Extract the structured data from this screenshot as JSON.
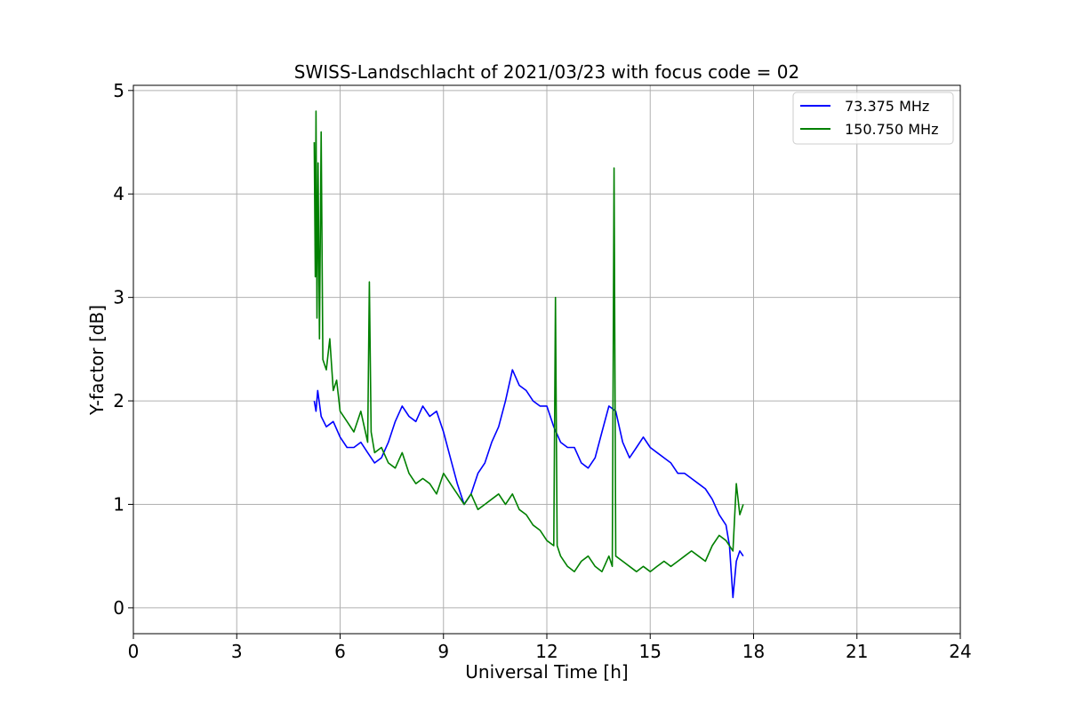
{
  "chart_data": {
    "type": "line",
    "title": "SWISS-Landschlacht of 2021/03/23 with focus code = 02",
    "xlabel": "Universal Time [h]",
    "ylabel": "Y-factor [dB]",
    "xlim": [
      0,
      24
    ],
    "ylim": [
      -0.25,
      5.05
    ],
    "xticks": [
      "0",
      "3",
      "6",
      "9",
      "12",
      "15",
      "18",
      "21",
      "24"
    ],
    "yticks": [
      "0",
      "1",
      "2",
      "3",
      "4",
      "5"
    ],
    "grid": true,
    "legend_position": "top-right",
    "series": [
      {
        "name": "73.375 MHz",
        "color": "#0000ff",
        "x": [
          5.25,
          5.3,
          5.35,
          5.45,
          5.6,
          5.8,
          6.0,
          6.2,
          6.4,
          6.6,
          6.8,
          7.0,
          7.2,
          7.4,
          7.6,
          7.8,
          8.0,
          8.2,
          8.4,
          8.6,
          8.8,
          9.0,
          9.2,
          9.4,
          9.6,
          9.8,
          10.0,
          10.2,
          10.4,
          10.6,
          10.8,
          11.0,
          11.2,
          11.4,
          11.6,
          11.8,
          12.0,
          12.2,
          12.4,
          12.6,
          12.8,
          13.0,
          13.2,
          13.4,
          13.6,
          13.8,
          14.0,
          14.2,
          14.4,
          14.6,
          14.8,
          15.0,
          15.2,
          15.4,
          15.6,
          15.8,
          16.0,
          16.2,
          16.4,
          16.6,
          16.8,
          17.0,
          17.2,
          17.3,
          17.4,
          17.5,
          17.6,
          17.7
        ],
        "y": [
          2.0,
          1.9,
          2.1,
          1.85,
          1.75,
          1.8,
          1.65,
          1.55,
          1.55,
          1.6,
          1.5,
          1.4,
          1.45,
          1.6,
          1.8,
          1.95,
          1.85,
          1.8,
          1.95,
          1.85,
          1.9,
          1.7,
          1.45,
          1.2,
          1.0,
          1.1,
          1.3,
          1.4,
          1.6,
          1.75,
          2.0,
          2.3,
          2.15,
          2.1,
          2.0,
          1.95,
          1.95,
          1.75,
          1.6,
          1.55,
          1.55,
          1.4,
          1.35,
          1.45,
          1.7,
          1.95,
          1.9,
          1.6,
          1.45,
          1.55,
          1.65,
          1.55,
          1.5,
          1.45,
          1.4,
          1.3,
          1.3,
          1.25,
          1.2,
          1.15,
          1.05,
          0.9,
          0.8,
          0.6,
          0.1,
          0.45,
          0.55,
          0.5
        ]
      },
      {
        "name": "150.750 MHz",
        "color": "#008000",
        "x": [
          5.25,
          5.28,
          5.3,
          5.33,
          5.36,
          5.4,
          5.45,
          5.5,
          5.6,
          5.7,
          5.8,
          5.9,
          6.0,
          6.2,
          6.4,
          6.6,
          6.8,
          6.85,
          6.9,
          7.0,
          7.2,
          7.4,
          7.6,
          7.8,
          8.0,
          8.2,
          8.4,
          8.6,
          8.8,
          9.0,
          9.2,
          9.4,
          9.6,
          9.8,
          10.0,
          10.2,
          10.4,
          10.6,
          10.8,
          11.0,
          11.2,
          11.4,
          11.6,
          11.8,
          12.0,
          12.2,
          12.25,
          12.3,
          12.4,
          12.6,
          12.8,
          13.0,
          13.2,
          13.4,
          13.6,
          13.8,
          13.9,
          13.95,
          14.0,
          14.2,
          14.4,
          14.6,
          14.8,
          15.0,
          15.2,
          15.4,
          15.6,
          15.8,
          16.0,
          16.2,
          16.4,
          16.6,
          16.8,
          17.0,
          17.2,
          17.4,
          17.5,
          17.6,
          17.7
        ],
        "y": [
          4.5,
          3.2,
          4.8,
          2.8,
          4.3,
          2.6,
          4.6,
          2.4,
          2.3,
          2.6,
          2.1,
          2.2,
          1.9,
          1.8,
          1.7,
          1.9,
          1.6,
          3.15,
          1.7,
          1.5,
          1.55,
          1.4,
          1.35,
          1.5,
          1.3,
          1.2,
          1.25,
          1.2,
          1.1,
          1.3,
          1.2,
          1.1,
          1.0,
          1.1,
          0.95,
          1.0,
          1.05,
          1.1,
          1.0,
          1.1,
          0.95,
          0.9,
          0.8,
          0.75,
          0.65,
          0.6,
          3.0,
          0.6,
          0.5,
          0.4,
          0.35,
          0.45,
          0.5,
          0.4,
          0.35,
          0.5,
          0.4,
          4.25,
          0.5,
          0.45,
          0.4,
          0.35,
          0.4,
          0.35,
          0.4,
          0.45,
          0.4,
          0.45,
          0.5,
          0.55,
          0.5,
          0.45,
          0.6,
          0.7,
          0.65,
          0.55,
          1.2,
          0.9,
          1.0
        ]
      }
    ]
  }
}
